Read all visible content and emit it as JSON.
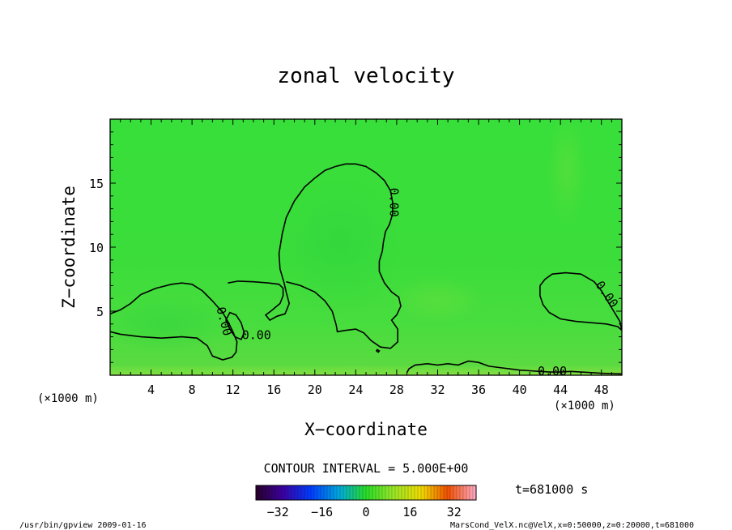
{
  "figure": {
    "title": "zonal velocity",
    "xlabel": "X−coordinate",
    "ylabel": "Z−coordinate",
    "x_unit": "(×1000 m)",
    "x_unit_left": "(×1000 m)",
    "contour_interval_text": "CONTOUR INTERVAL = 5.000E+00",
    "time_text": "t=681000 s",
    "footer_left": "/usr/bin/gpview  2009-01-16",
    "footer_right": "MarsCond_VelX.nc@VelX,x=0:50000,z=0:20000,t=681000",
    "colors": {
      "field": "#33dd33",
      "field_light": "#55e040",
      "contour": "#000000"
    }
  },
  "chart_data": {
    "type": "heatmap",
    "title": "zonal velocity",
    "xlabel": "X−coordinate",
    "ylabel": "Z−coordinate",
    "x_unit": "×1000 m",
    "xlim": [
      0,
      50
    ],
    "ylim": [
      0,
      20
    ],
    "x_ticks": [
      4,
      8,
      12,
      16,
      20,
      24,
      28,
      32,
      36,
      40,
      44,
      48
    ],
    "y_ticks": [
      5,
      10,
      15
    ],
    "contour_interval": 5.0,
    "contour_labels": [
      {
        "text": "0.00",
        "x": 27.7,
        "y": 13.5,
        "rotate": 90
      },
      {
        "text": "0.00",
        "x": 11.1,
        "y": 4.2,
        "rotate": 75
      },
      {
        "text": "0.00",
        "x": 14.3,
        "y": 3.1,
        "rotate": 0
      },
      {
        "text": "0.00",
        "x": 43.2,
        "y": 0.3,
        "rotate": 0
      },
      {
        "text": "0.00",
        "x": 48.5,
        "y": 6.3,
        "rotate": 55
      }
    ],
    "zero_contours": [
      [
        [
          0,
          4.8
        ],
        [
          1,
          5.1
        ],
        [
          2,
          5.6
        ],
        [
          3,
          6.3
        ],
        [
          4.5,
          6.8
        ],
        [
          6,
          7.1
        ],
        [
          7,
          7.2
        ],
        [
          8,
          7.1
        ],
        [
          9,
          6.6
        ],
        [
          10,
          5.8
        ],
        [
          11,
          4.9
        ],
        [
          11.5,
          4.2
        ],
        [
          12,
          3.4
        ],
        [
          12.4,
          2.6
        ],
        [
          12.3,
          1.8
        ],
        [
          11.9,
          1.4
        ],
        [
          11,
          1.2
        ],
        [
          10,
          1.5
        ],
        [
          9.5,
          2.3
        ],
        [
          8.5,
          2.9
        ],
        [
          7,
          3.0
        ],
        [
          5,
          2.9
        ],
        [
          3,
          3.0
        ],
        [
          1,
          3.2
        ],
        [
          0,
          3.4
        ]
      ],
      [
        [
          11.3,
          4.3
        ],
        [
          11.7,
          3.6
        ],
        [
          12.2,
          3.0
        ],
        [
          12.8,
          2.8
        ],
        [
          13.1,
          3.3
        ],
        [
          12.8,
          4.1
        ],
        [
          12.3,
          4.7
        ],
        [
          11.7,
          4.9
        ],
        [
          11.3,
          4.3
        ]
      ],
      [
        [
          11.5,
          7.2
        ],
        [
          12.5,
          7.35
        ],
        [
          14,
          7.3
        ],
        [
          15.5,
          7.2
        ],
        [
          16.5,
          7.1
        ],
        [
          16.9,
          6.8
        ],
        [
          16.9,
          6.2
        ],
        [
          16.6,
          5.6
        ],
        [
          15.7,
          5.0
        ],
        [
          15.2,
          4.7
        ],
        [
          15.6,
          4.3
        ],
        [
          16.3,
          4.6
        ],
        [
          17.1,
          4.8
        ],
        [
          17.5,
          5.6
        ],
        [
          17.2,
          6.5
        ],
        [
          17,
          7.2
        ],
        [
          16.6,
          8.3
        ],
        [
          16.5,
          9.5
        ],
        [
          16.8,
          11
        ],
        [
          17.2,
          12.3
        ],
        [
          18,
          13.6
        ],
        [
          19,
          14.7
        ],
        [
          20,
          15.4
        ],
        [
          21,
          16
        ],
        [
          22,
          16.3
        ],
        [
          23,
          16.5
        ],
        [
          24,
          16.5
        ],
        [
          25,
          16.3
        ],
        [
          26,
          15.8
        ],
        [
          26.8,
          15.2
        ],
        [
          27.4,
          14.4
        ],
        [
          27.6,
          13.5
        ],
        [
          27.6,
          12.6
        ],
        [
          27.3,
          11.8
        ],
        [
          26.9,
          11.2
        ],
        [
          26.7,
          10.4
        ],
        [
          26.6,
          9.7
        ],
        [
          26.3,
          8.9
        ],
        [
          26.3,
          8.1
        ],
        [
          26.8,
          7.2
        ],
        [
          27.5,
          6.5
        ],
        [
          28.2,
          6.1
        ],
        [
          28.4,
          5.4
        ],
        [
          28.0,
          4.7
        ],
        [
          27.5,
          4.3
        ],
        [
          28.1,
          3.6
        ],
        [
          28.1,
          2.6
        ],
        [
          27.4,
          2.1
        ],
        [
          26.4,
          2.2
        ],
        [
          25.5,
          2.7
        ],
        [
          24.8,
          3.3
        ],
        [
          24.0,
          3.6
        ],
        [
          23.0,
          3.5
        ],
        [
          22.2,
          3.4
        ],
        [
          22.1,
          3.9
        ],
        [
          21.7,
          5.0
        ],
        [
          21.0,
          5.8
        ],
        [
          20.0,
          6.5
        ],
        [
          18.6,
          7.0
        ],
        [
          17.2,
          7.3
        ]
      ],
      [
        [
          42,
          7.0
        ],
        [
          42.5,
          7.5
        ],
        [
          43.2,
          7.9
        ],
        [
          44.5,
          8.0
        ],
        [
          46,
          7.9
        ],
        [
          47.3,
          7.3
        ],
        [
          48,
          6.6
        ],
        [
          48.6,
          5.8
        ],
        [
          49.2,
          5.0
        ],
        [
          49.8,
          4.2
        ],
        [
          50,
          3.5
        ]
      ],
      [
        [
          42,
          7.0
        ],
        [
          42.0,
          6.2
        ],
        [
          42.3,
          5.5
        ],
        [
          42.9,
          4.9
        ],
        [
          44,
          4.4
        ],
        [
          45.5,
          4.2
        ],
        [
          47,
          4.1
        ],
        [
          48.5,
          4.0
        ],
        [
          49.6,
          3.8
        ],
        [
          50,
          3.5
        ]
      ],
      [
        [
          29,
          0.2
        ],
        [
          29.2,
          0.5
        ],
        [
          29.8,
          0.8
        ],
        [
          31,
          0.9
        ],
        [
          32,
          0.8
        ],
        [
          33,
          0.9
        ],
        [
          34,
          0.8
        ],
        [
          35,
          1.1
        ],
        [
          36,
          1.0
        ],
        [
          37,
          0.7
        ],
        [
          38,
          0.6
        ],
        [
          39,
          0.5
        ],
        [
          40,
          0.4
        ],
        [
          41,
          0.35
        ],
        [
          42,
          0.3
        ],
        [
          43,
          0.25
        ],
        [
          44,
          0.25
        ],
        [
          45,
          0.3
        ],
        [
          46,
          0.25
        ],
        [
          47,
          0.2
        ],
        [
          48,
          0.15
        ],
        [
          50,
          0.1
        ]
      ],
      [
        [
          26.0,
          1.9
        ],
        [
          26.2,
          1.8
        ],
        [
          26.3,
          1.9
        ],
        [
          26.1,
          2.0
        ],
        [
          26.0,
          1.9
        ]
      ]
    ],
    "colorbar": {
      "range": [
        -40,
        40
      ],
      "ticks": [
        -32,
        -16,
        0,
        16,
        32
      ],
      "tick_labels": [
        "−32",
        "−16",
        "0",
        "16",
        "32"
      ]
    }
  }
}
